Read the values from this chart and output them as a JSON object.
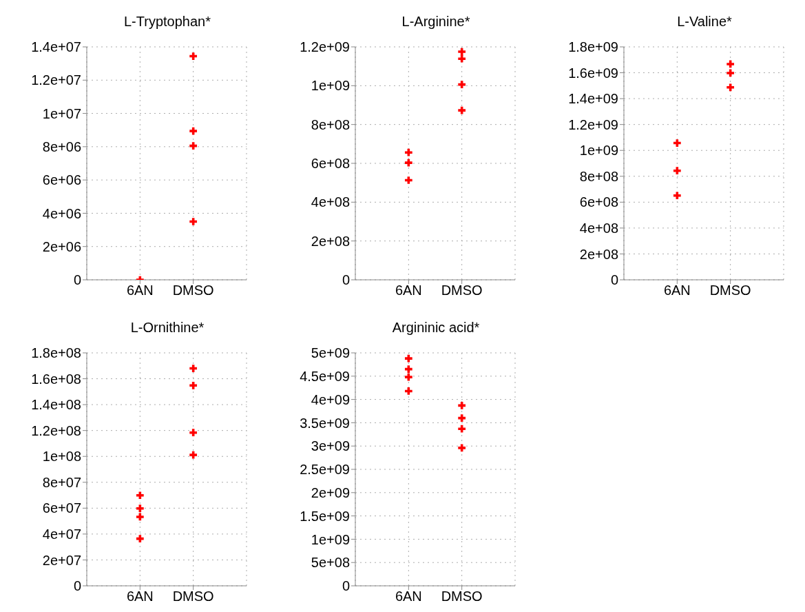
{
  "chart_data": [
    {
      "type": "scatter",
      "title": "L-Tryptophan*",
      "categories": [
        "6AN",
        "DMSO"
      ],
      "marker": "cross",
      "grid": true,
      "series": [
        {
          "color": "#ff0000",
          "x": [
            "6AN",
            "DMSO",
            "DMSO",
            "DMSO",
            "DMSO"
          ],
          "values": [
            0,
            13440000,
            8940000,
            8050000,
            3500000
          ]
        }
      ],
      "ylim": [
        0,
        14000000
      ],
      "yticks": [
        {
          "value": 0,
          "label": "0"
        },
        {
          "value": 2000000,
          "label": "2e+06"
        },
        {
          "value": 4000000,
          "label": "4e+06"
        },
        {
          "value": 6000000,
          "label": "6e+06"
        },
        {
          "value": 8000000,
          "label": "8e+06"
        },
        {
          "value": 10000000,
          "label": "1e+07"
        },
        {
          "value": 12000000,
          "label": "1.2e+07"
        },
        {
          "value": 14000000,
          "label": "1.4e+07"
        }
      ]
    },
    {
      "type": "scatter",
      "title": "L-Arginine*",
      "categories": [
        "6AN",
        "DMSO"
      ],
      "marker": "cross",
      "grid": true,
      "series": [
        {
          "color": "#ff0000",
          "x": [
            "6AN",
            "6AN",
            "6AN",
            "DMSO",
            "DMSO",
            "DMSO",
            "DMSO"
          ],
          "values": [
            656000000,
            603000000,
            513000000,
            1175000000,
            1139000000,
            1006000000,
            873000000
          ]
        }
      ],
      "ylim": [
        0,
        1200000000
      ],
      "yticks": [
        {
          "value": 0,
          "label": "0"
        },
        {
          "value": 200000000,
          "label": "2e+08"
        },
        {
          "value": 400000000,
          "label": "4e+08"
        },
        {
          "value": 600000000,
          "label": "6e+08"
        },
        {
          "value": 800000000,
          "label": "8e+08"
        },
        {
          "value": 1000000000,
          "label": "1e+09"
        },
        {
          "value": 1200000000,
          "label": "1.2e+09"
        }
      ]
    },
    {
      "type": "scatter",
      "title": "L-Valine*",
      "categories": [
        "6AN",
        "DMSO"
      ],
      "marker": "cross",
      "grid": true,
      "series": [
        {
          "color": "#ff0000",
          "x": [
            "6AN",
            "6AN",
            "6AN",
            "DMSO",
            "DMSO",
            "DMSO"
          ],
          "values": [
            1057000000,
            843000000,
            651000000,
            1667000000,
            1598000000,
            1487000000
          ]
        }
      ],
      "ylim": [
        0,
        1800000000
      ],
      "yticks": [
        {
          "value": 0,
          "label": "0"
        },
        {
          "value": 200000000,
          "label": "2e+08"
        },
        {
          "value": 400000000,
          "label": "4e+08"
        },
        {
          "value": 600000000,
          "label": "6e+08"
        },
        {
          "value": 800000000,
          "label": "8e+08"
        },
        {
          "value": 1000000000,
          "label": "1e+09"
        },
        {
          "value": 1200000000,
          "label": "1.2e+09"
        },
        {
          "value": 1400000000,
          "label": "1.4e+09"
        },
        {
          "value": 1600000000,
          "label": "1.6e+09"
        },
        {
          "value": 1800000000,
          "label": "1.8e+09"
        }
      ]
    },
    {
      "type": "scatter",
      "title": "L-Ornithine*",
      "categories": [
        "6AN",
        "DMSO"
      ],
      "marker": "cross",
      "grid": true,
      "series": [
        {
          "color": "#ff0000",
          "x": [
            "6AN",
            "6AN",
            "6AN",
            "6AN",
            "DMSO",
            "DMSO",
            "DMSO",
            "DMSO"
          ],
          "values": [
            69900000,
            59800000,
            53300000,
            36400000,
            168000000,
            154800000,
            118400000,
            101100000
          ]
        }
      ],
      "ylim": [
        0,
        180000000
      ],
      "yticks": [
        {
          "value": 0,
          "label": "0"
        },
        {
          "value": 20000000,
          "label": "2e+07"
        },
        {
          "value": 40000000,
          "label": "4e+07"
        },
        {
          "value": 60000000,
          "label": "6e+07"
        },
        {
          "value": 80000000,
          "label": "8e+07"
        },
        {
          "value": 100000000,
          "label": "1e+08"
        },
        {
          "value": 120000000,
          "label": "1.2e+08"
        },
        {
          "value": 140000000,
          "label": "1.4e+08"
        },
        {
          "value": 160000000,
          "label": "1.6e+08"
        },
        {
          "value": 180000000,
          "label": "1.8e+08"
        }
      ]
    },
    {
      "type": "scatter",
      "title": "Argininic acid*",
      "categories": [
        "6AN",
        "DMSO"
      ],
      "marker": "cross",
      "grid": true,
      "series": [
        {
          "color": "#ff0000",
          "x": [
            "6AN",
            "6AN",
            "6AN",
            "6AN",
            "DMSO",
            "DMSO",
            "DMSO",
            "DMSO"
          ],
          "values": [
            4880000000,
            4650000000,
            4480000000,
            4180000000,
            3870000000,
            3600000000,
            3370000000,
            2960000000
          ]
        }
      ],
      "ylim": [
        0,
        5000000000
      ],
      "yticks": [
        {
          "value": 0,
          "label": "0"
        },
        {
          "value": 500000000,
          "label": "5e+08"
        },
        {
          "value": 1000000000,
          "label": "1e+09"
        },
        {
          "value": 1500000000,
          "label": "1.5e+09"
        },
        {
          "value": 2000000000,
          "label": "2e+09"
        },
        {
          "value": 2500000000,
          "label": "2.5e+09"
        },
        {
          "value": 3000000000,
          "label": "3e+09"
        },
        {
          "value": 3500000000,
          "label": "3.5e+09"
        },
        {
          "value": 4000000000,
          "label": "4e+09"
        },
        {
          "value": 4500000000,
          "label": "4.5e+09"
        },
        {
          "value": 5000000000,
          "label": "5e+09"
        }
      ]
    }
  ]
}
